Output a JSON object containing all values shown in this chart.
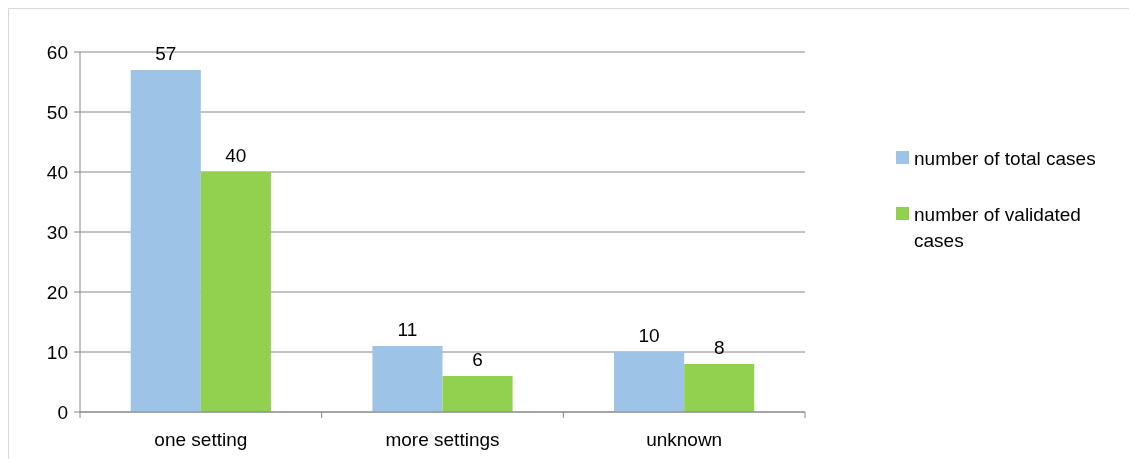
{
  "chart_data": {
    "type": "bar",
    "categories": [
      "one setting",
      "more settings",
      "unknown"
    ],
    "series": [
      {
        "name": "number of total cases",
        "color": "#9dc3e6",
        "values": [
          57,
          11,
          10
        ]
      },
      {
        "name": "number of validated cases",
        "color": "#92d050",
        "values": [
          40,
          6,
          8
        ]
      }
    ],
    "ylim": [
      0,
      60
    ],
    "yticks": [
      0,
      10,
      20,
      30,
      40,
      50,
      60
    ],
    "grid": "y",
    "legend": "right",
    "data_labels": true
  }
}
